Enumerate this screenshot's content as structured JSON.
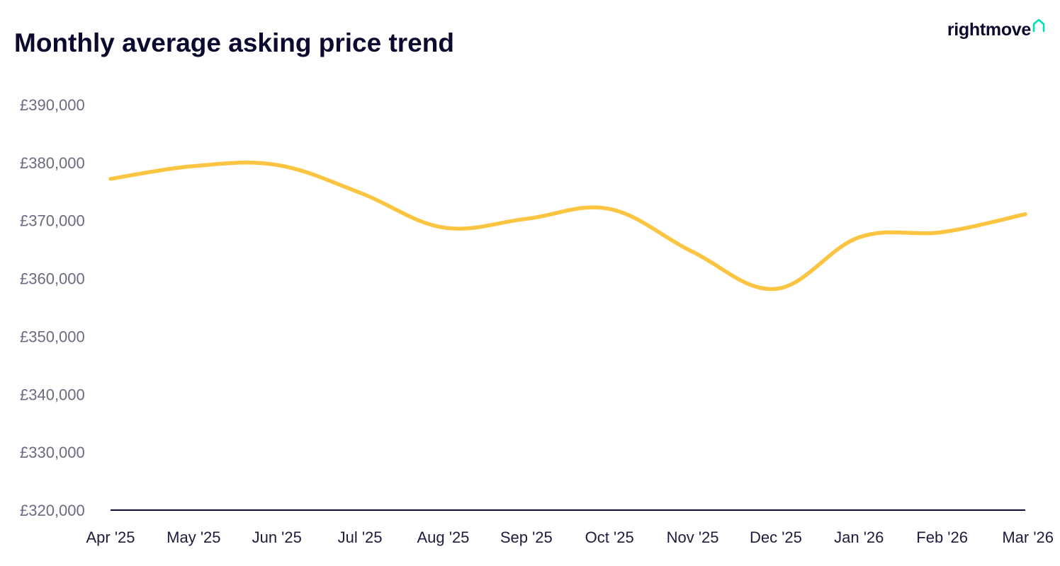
{
  "header": {
    "title": "Monthly average asking price trend",
    "brand": "rightmove",
    "brand_icon": "house-outline-icon"
  },
  "colors": {
    "line": "#fbc441",
    "axis": "#0c0a2e",
    "brand_accent": "#00deb6",
    "title": "#0c0a2e"
  },
  "chart_data": {
    "type": "line",
    "title": "Monthly average asking price trend",
    "xlabel": "",
    "ylabel": "",
    "categories": [
      "Apr '25",
      "May '25",
      "Jun '25",
      "Jul '25",
      "Aug '25",
      "Sep '25",
      "Oct '25",
      "Nov '25",
      "Dec '25",
      "Jan '26",
      "Feb '26",
      "Mar '26"
    ],
    "x_tick_labels": [
      "Apr '25",
      "May '25",
      "Jun '25",
      "Jul '25",
      "Aug '25",
      "Sep '25",
      "Oct '25",
      "Nov '25",
      "Dec '25",
      "Jan '26",
      "Feb '26",
      "Mar '26"
    ],
    "y_tick_labels": [
      "£390,000",
      "£380,000",
      "£370,000",
      "£360,000",
      "£350,000",
      "£340,000",
      "£330,000",
      "£320,000"
    ],
    "ylim": [
      320000,
      390000
    ],
    "y_ticks": [
      390000,
      380000,
      370000,
      360000,
      350000,
      340000,
      330000,
      320000
    ],
    "grid": false,
    "legend": "none",
    "series": [
      {
        "values": [
          377200,
          379400,
          379600,
          374800,
          368800,
          370300,
          372000,
          364600,
          358200,
          367100,
          368000,
          371100
        ]
      }
    ]
  }
}
